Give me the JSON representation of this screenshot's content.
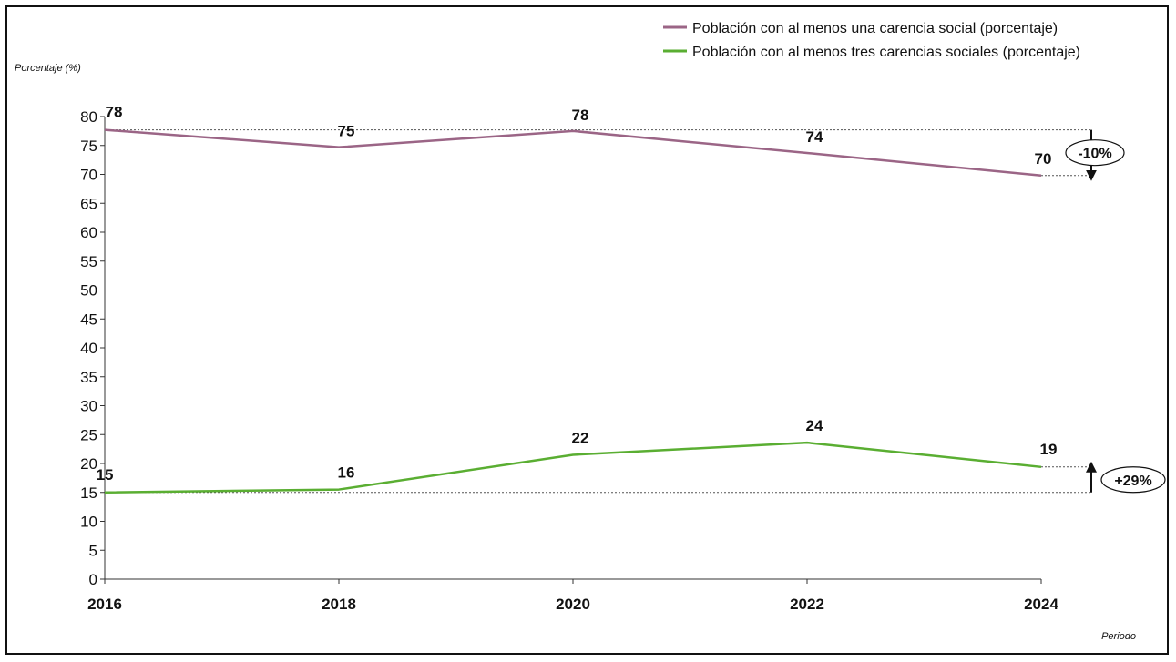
{
  "chart_data": {
    "type": "line",
    "ylabel": "Porcentaje (%)",
    "xlabel": "Periodo",
    "ylim": [
      0,
      80
    ],
    "yticks": [
      0,
      5,
      10,
      15,
      20,
      25,
      30,
      35,
      40,
      45,
      50,
      55,
      60,
      65,
      70,
      75,
      80
    ],
    "categories": [
      "2016",
      "2018",
      "2020",
      "2022",
      "2024"
    ],
    "grid": false,
    "legend_position": "top-right",
    "series": [
      {
        "name": "Población con al menos una carencia social (porcentaje)",
        "color": "#9B6586",
        "values": [
          77.7,
          74.7,
          77.5,
          73.7,
          69.8
        ],
        "labels": [
          "78",
          "75",
          "78",
          "74",
          "70"
        ]
      },
      {
        "name": "Población con al menos tres carencias sociales (porcentaje)",
        "color": "#5AAE32",
        "values": [
          15.0,
          15.5,
          21.5,
          23.6,
          19.4
        ],
        "labels": [
          "15",
          "16",
          "22",
          "24",
          "19"
        ]
      }
    ],
    "annotations": [
      {
        "series": 0,
        "text": "-10%",
        "direction": "down"
      },
      {
        "series": 1,
        "text": "+29%",
        "direction": "up"
      }
    ]
  }
}
